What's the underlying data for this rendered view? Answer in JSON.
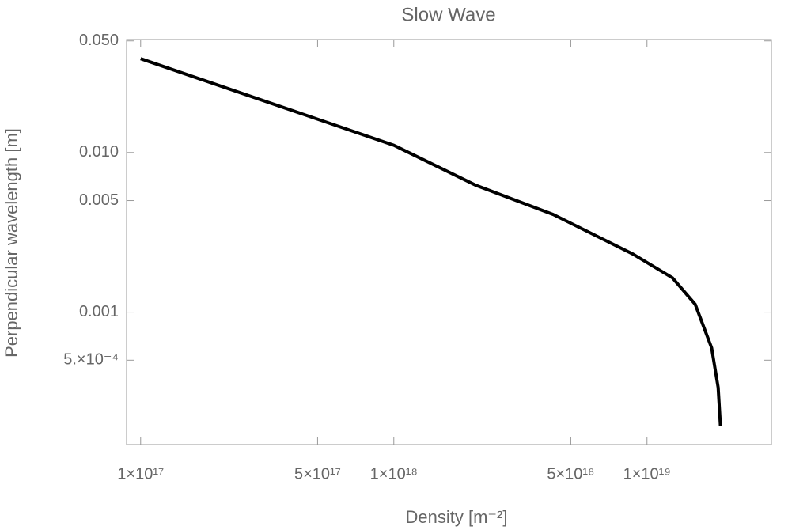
{
  "chart_data": {
    "type": "line",
    "title": "Slow Wave",
    "x_label": "Density [m⁻²]",
    "y_label": "Perpendicular wavelength [m]",
    "log_x": true,
    "log_y": true,
    "xlim": [
      8.8e+16,
      3.1e+19
    ],
    "ylim": [
      0.000148,
      0.051
    ],
    "xticks": [
      {
        "value": 1e+17,
        "label": "1×10¹⁷"
      },
      {
        "value": 5e+17,
        "label": "5×10¹⁷"
      },
      {
        "value": 1e+18,
        "label": "1×10¹⁸"
      },
      {
        "value": 5e+18,
        "label": "5×10¹⁸"
      },
      {
        "value": 1e+19,
        "label": "1×10¹⁹"
      }
    ],
    "yticks": [
      {
        "value": 0.05,
        "label": "0.050"
      },
      {
        "value": 0.01,
        "label": "0.010"
      },
      0.005,
      0.001,
      {
        "value": 0.0005,
        "label": "5.×10⁻⁴"
      }
    ],
    "x": [
      1e+17,
      1e+18,
      2.1e+18,
      4.26e+18,
      8.8e+18,
      1.26e+19,
      1.55e+19,
      1.8e+19,
      1.91e+19,
      1.95e+19
    ],
    "series": [
      {
        "color": "#000000",
        "values": [
          0.0387,
          0.0111,
          0.00625,
          0.00409,
          0.00231,
          0.00164,
          0.00112,
          0.000597,
          0.000337,
          0.000194
        ]
      }
    ]
  }
}
